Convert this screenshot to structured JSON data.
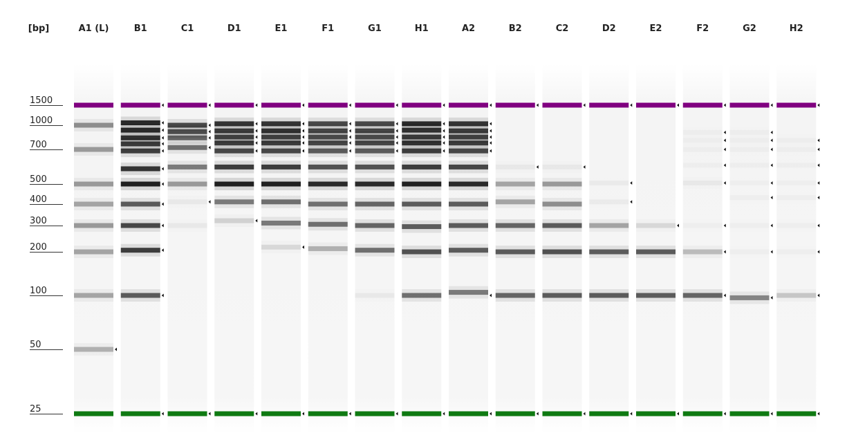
{
  "chart_data": {
    "type": "gel",
    "y_unit_label": "[bp]",
    "lanes": [
      "A1 (L)",
      "B1",
      "C1",
      "D1",
      "E1",
      "F1",
      "G1",
      "H1",
      "A2",
      "B2",
      "C2",
      "D2",
      "E2",
      "F2",
      "G2",
      "H2"
    ],
    "ladder_sizes_bp": [
      1500,
      1000,
      700,
      500,
      400,
      300,
      200,
      100,
      50,
      25
    ],
    "ladder_labels": [
      "1500",
      "1000",
      "700",
      "500",
      "400",
      "300",
      "200",
      "100",
      "50",
      "25"
    ],
    "upper_marker": {
      "size_bp": 1500,
      "color": "#800080"
    },
    "lower_marker": {
      "size_bp": 25,
      "color": "#0f7a12"
    },
    "band_color": "#000000",
    "bands": [
      [
        [
          1000,
          0.45
        ],
        [
          700,
          0.4
        ],
        [
          500,
          0.4
        ],
        [
          400,
          0.35
        ],
        [
          300,
          0.4
        ],
        [
          200,
          0.35
        ],
        [
          100,
          0.35
        ],
        [
          50,
          0.3
        ]
      ],
      [
        [
          1050,
          0.95
        ],
        [
          930,
          0.95
        ],
        [
          830,
          0.9
        ],
        [
          760,
          0.85
        ],
        [
          690,
          0.85
        ],
        [
          580,
          0.9
        ],
        [
          500,
          1.0
        ],
        [
          400,
          0.7
        ],
        [
          300,
          0.8
        ],
        [
          205,
          0.85
        ],
        [
          100,
          0.7
        ]
      ],
      [
        [
          1000,
          0.8
        ],
        [
          910,
          0.75
        ],
        [
          830,
          0.65
        ],
        [
          720,
          0.6
        ],
        [
          590,
          0.55
        ],
        [
          500,
          0.4
        ],
        [
          410,
          0.05
        ],
        [
          300,
          0.05
        ]
      ],
      [
        [
          1030,
          0.9
        ],
        [
          920,
          0.85
        ],
        [
          840,
          0.8
        ],
        [
          770,
          0.85
        ],
        [
          690,
          0.8
        ],
        [
          590,
          0.85
        ],
        [
          500,
          1.0
        ],
        [
          410,
          0.55
        ],
        [
          320,
          0.15
        ]
      ],
      [
        [
          1030,
          0.9
        ],
        [
          920,
          0.9
        ],
        [
          840,
          0.8
        ],
        [
          770,
          0.85
        ],
        [
          690,
          0.8
        ],
        [
          590,
          0.85
        ],
        [
          500,
          1.0
        ],
        [
          410,
          0.6
        ],
        [
          310,
          0.55
        ],
        [
          215,
          0.12
        ]
      ],
      [
        [
          1030,
          0.8
        ],
        [
          920,
          0.8
        ],
        [
          840,
          0.75
        ],
        [
          770,
          0.8
        ],
        [
          690,
          0.7
        ],
        [
          590,
          0.75
        ],
        [
          500,
          0.95
        ],
        [
          400,
          0.6
        ],
        [
          305,
          0.6
        ],
        [
          210,
          0.3
        ]
      ],
      [
        [
          1030,
          0.8
        ],
        [
          920,
          0.8
        ],
        [
          840,
          0.75
        ],
        [
          770,
          0.8
        ],
        [
          690,
          0.7
        ],
        [
          590,
          0.75
        ],
        [
          500,
          0.95
        ],
        [
          400,
          0.65
        ],
        [
          300,
          0.65
        ],
        [
          205,
          0.6
        ],
        [
          100,
          0.05
        ]
      ],
      [
        [
          1030,
          0.95
        ],
        [
          930,
          0.9
        ],
        [
          840,
          0.85
        ],
        [
          770,
          0.9
        ],
        [
          690,
          0.85
        ],
        [
          590,
          0.85
        ],
        [
          500,
          1.0
        ],
        [
          400,
          0.7
        ],
        [
          295,
          0.7
        ],
        [
          200,
          0.75
        ],
        [
          100,
          0.6
        ]
      ],
      [
        [
          1030,
          0.9
        ],
        [
          920,
          0.85
        ],
        [
          840,
          0.8
        ],
        [
          770,
          0.85
        ],
        [
          690,
          0.8
        ],
        [
          590,
          0.8
        ],
        [
          500,
          0.95
        ],
        [
          400,
          0.7
        ],
        [
          300,
          0.7
        ],
        [
          205,
          0.7
        ],
        [
          105,
          0.55
        ]
      ],
      [
        [
          590,
          0.05
        ],
        [
          500,
          0.35
        ],
        [
          410,
          0.35
        ],
        [
          300,
          0.65
        ],
        [
          200,
          0.7
        ],
        [
          100,
          0.65
        ]
      ],
      [
        [
          590,
          0.05
        ],
        [
          500,
          0.4
        ],
        [
          400,
          0.45
        ],
        [
          300,
          0.7
        ],
        [
          200,
          0.75
        ],
        [
          100,
          0.7
        ]
      ],
      [
        [
          505,
          0.04
        ],
        [
          410,
          0.04
        ],
        [
          300,
          0.35
        ],
        [
          200,
          0.7
        ],
        [
          100,
          0.7
        ]
      ],
      [
        [
          300,
          0.12
        ],
        [
          200,
          0.7
        ],
        [
          100,
          0.7
        ]
      ],
      [
        [
          900,
          0.03
        ],
        [
          800,
          0.03
        ],
        [
          700,
          0.03
        ],
        [
          600,
          0.03
        ],
        [
          505,
          0.05
        ],
        [
          300,
          0.03
        ],
        [
          200,
          0.25
        ],
        [
          100,
          0.65
        ]
      ],
      [
        [
          900,
          0.03
        ],
        [
          800,
          0.03
        ],
        [
          700,
          0.03
        ],
        [
          600,
          0.03
        ],
        [
          505,
          0.03
        ],
        [
          430,
          0.03
        ],
        [
          300,
          0.03
        ],
        [
          200,
          0.03
        ],
        [
          97,
          0.5
        ]
      ],
      [
        [
          800,
          0.03
        ],
        [
          700,
          0.03
        ],
        [
          600,
          0.03
        ],
        [
          505,
          0.03
        ],
        [
          430,
          0.03
        ],
        [
          300,
          0.03
        ],
        [
          200,
          0.03
        ],
        [
          100,
          0.2
        ]
      ]
    ],
    "markers_bp": [
      [
        50
      ],
      [
        1500,
        1050,
        930,
        830,
        760,
        690,
        580,
        500,
        400,
        300,
        205,
        100,
        25
      ],
      [
        1500,
        1000,
        910,
        830,
        720,
        410,
        25
      ],
      [
        1500,
        1030,
        920,
        840,
        770,
        690,
        320,
        25
      ],
      [
        1500,
        1030,
        920,
        840,
        770,
        690,
        215,
        25
      ],
      [
        1500,
        1030,
        920,
        840,
        770,
        690,
        25
      ],
      [
        1500,
        1030,
        920,
        840,
        770,
        690,
        25
      ],
      [
        1500,
        1030,
        920,
        840,
        770,
        690,
        25
      ],
      [
        1500,
        1030,
        920,
        840,
        770,
        690,
        100,
        25
      ],
      [
        1500,
        590,
        25
      ],
      [
        1500,
        590,
        25
      ],
      [
        1500,
        505,
        410,
        25
      ],
      [
        1500,
        300,
        25
      ],
      [
        1500,
        900,
        800,
        700,
        600,
        505,
        300,
        200,
        100,
        25
      ],
      [
        1500,
        900,
        800,
        700,
        600,
        505,
        430,
        300,
        200,
        97,
        25
      ],
      [
        1500,
        800,
        700,
        600,
        505,
        430,
        300,
        200,
        100,
        25
      ]
    ]
  }
}
